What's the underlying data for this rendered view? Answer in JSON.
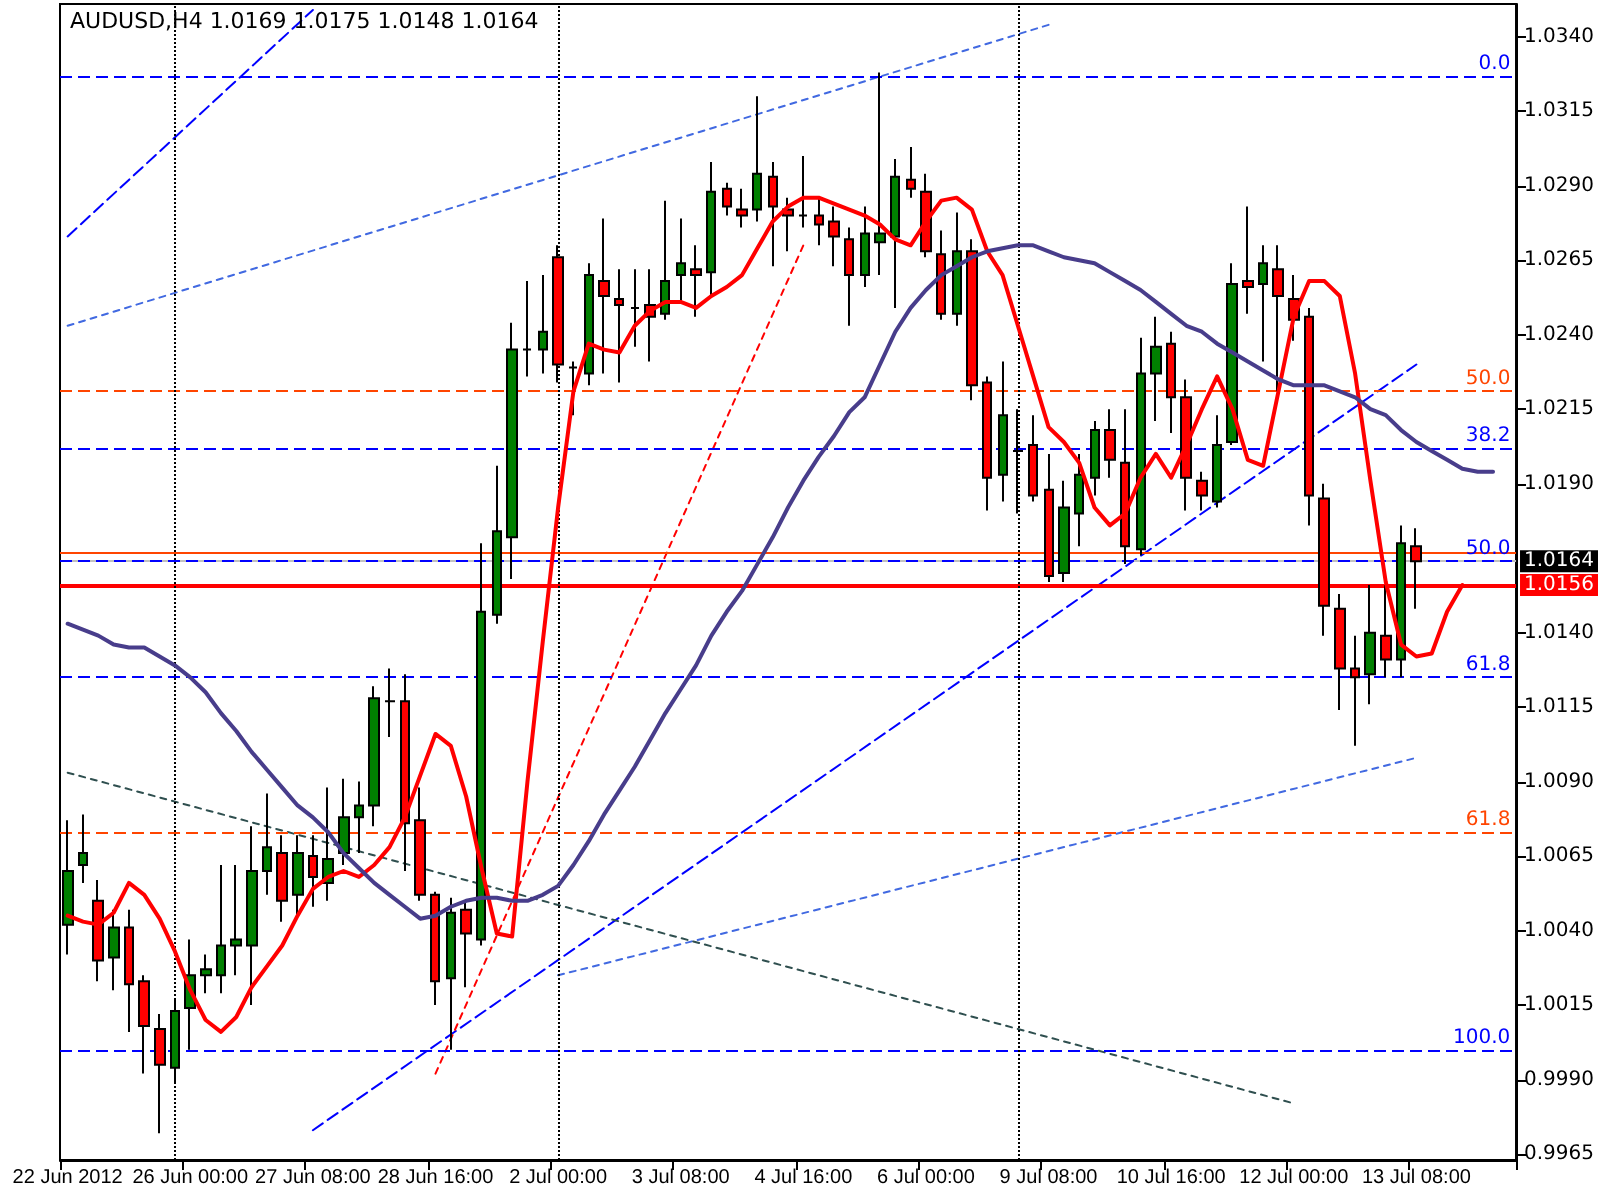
{
  "chart_data": {
    "type": "candlestick",
    "title": "AUDUSD,H4 1.0169 1.0175 1.0148 1.0164",
    "categories": [
      "22 Jun 2012",
      null,
      null,
      null,
      null,
      null,
      null,
      null,
      "26 Jun 00:00",
      null,
      null,
      null,
      null,
      null,
      null,
      null,
      "27 Jun 08:00",
      null,
      null,
      null,
      null,
      null,
      null,
      null,
      "28 Jun 16:00",
      null,
      null,
      null,
      null,
      null,
      null,
      null,
      "2 Jul 00:00",
      null,
      null,
      null,
      null,
      null,
      null,
      null,
      "3 Jul 08:00",
      null,
      null,
      null,
      null,
      null,
      null,
      null,
      "4 Jul 16:00",
      null,
      null,
      null,
      null,
      null,
      null,
      null,
      "6 Jul 00:00",
      null,
      null,
      null,
      null,
      null,
      null,
      null,
      "9 Jul 08:00",
      null,
      null,
      null,
      null,
      null,
      null,
      null,
      "10 Jul 16:00",
      null,
      null,
      null,
      null,
      null,
      null,
      null,
      "12 Jul 00:00",
      null,
      null,
      null,
      null,
      null,
      null,
      null,
      "13 Jul 08:00",
      null,
      null,
      null,
      null,
      null,
      null
    ],
    "ohlc": [
      [
        1.0042,
        1.0077,
        1.0032,
        1.006
      ],
      [
        1.0062,
        1.0079,
        1.0056,
        1.0066
      ],
      [
        1.005,
        1.0057,
        1.0023,
        1.003
      ],
      [
        1.0031,
        1.0047,
        1.002,
        1.0041
      ],
      [
        1.0041,
        1.0047,
        1.0006,
        1.0022
      ],
      [
        1.0023,
        1.0025,
        0.9992,
        1.0008
      ],
      [
        1.0007,
        1.0012,
        0.9972,
        0.9995
      ],
      [
        0.9994,
        1.0017,
        0.9989,
        1.0013
      ],
      [
        1.0014,
        1.0037,
        1.0,
        1.0025
      ],
      [
        1.0025,
        1.0032,
        1.0019,
        1.0027
      ],
      [
        1.0025,
        1.0062,
        1.0019,
        1.0035
      ],
      [
        1.0035,
        1.0062,
        1.0025,
        1.0037
      ],
      [
        1.0035,
        1.0075,
        1.0015,
        1.006
      ],
      [
        1.006,
        1.0086,
        1.0052,
        1.0068
      ],
      [
        1.0066,
        1.0072,
        1.0043,
        1.005
      ],
      [
        1.0052,
        1.0072,
        1.0044,
        1.0066
      ],
      [
        1.0065,
        1.0072,
        1.0048,
        1.0058
      ],
      [
        1.0056,
        1.0088,
        1.005,
        1.0064
      ],
      [
        1.0066,
        1.0091,
        1.0062,
        1.0078
      ],
      [
        1.0078,
        1.009,
        1.0066,
        1.0082
      ],
      [
        1.0082,
        1.0122,
        1.0075,
        1.0118
      ],
      [
        1.0117,
        1.0128,
        1.0105,
        1.0117
      ],
      [
        1.0117,
        1.0126,
        1.006,
        1.0076
      ],
      [
        1.0077,
        1.0088,
        1.005,
        1.0052
      ],
      [
        1.0052,
        1.0053,
        1.0015,
        1.0023
      ],
      [
        1.0024,
        1.0051,
        1.0,
        1.0046
      ],
      [
        1.0047,
        1.005,
        1.0021,
        1.0039
      ],
      [
        1.0037,
        1.017,
        1.0035,
        1.0147
      ],
      [
        1.0146,
        1.0196,
        1.0143,
        1.0174
      ],
      [
        1.0172,
        1.0244,
        1.0158,
        1.0235
      ],
      [
        1.0235,
        1.0258,
        1.0226,
        1.0235
      ],
      [
        1.0235,
        1.026,
        1.0227,
        1.0241
      ],
      [
        1.0266,
        1.027,
        1.0224,
        1.023
      ],
      [
        1.0229,
        1.0231,
        1.0213,
        1.0229
      ],
      [
        1.0227,
        1.0264,
        1.0223,
        1.026
      ],
      [
        1.0258,
        1.0279,
        1.0227,
        1.0253
      ],
      [
        1.0252,
        1.0262,
        1.0224,
        1.025
      ],
      [
        1.0249,
        1.0262,
        1.0236,
        1.0249
      ],
      [
        1.025,
        1.0262,
        1.0231,
        1.0246
      ],
      [
        1.0247,
        1.0285,
        1.0245,
        1.0258
      ],
      [
        1.026,
        1.0279,
        1.0251,
        1.0264
      ],
      [
        1.0262,
        1.027,
        1.0246,
        1.026
      ],
      [
        1.0261,
        1.0298,
        1.0253,
        1.0288
      ],
      [
        1.0289,
        1.0291,
        1.028,
        1.0283
      ],
      [
        1.0282,
        1.0289,
        1.0276,
        1.028
      ],
      [
        1.0282,
        1.032,
        1.0278,
        1.0294
      ],
      [
        1.0293,
        1.0298,
        1.0263,
        1.0283
      ],
      [
        1.0282,
        1.0286,
        1.0268,
        1.028
      ],
      [
        1.028,
        1.03,
        1.0276,
        1.028
      ],
      [
        1.028,
        1.0286,
        1.027,
        1.0277
      ],
      [
        1.0278,
        1.0283,
        1.0263,
        1.0273
      ],
      [
        1.0272,
        1.0276,
        1.0243,
        1.026
      ],
      [
        1.026,
        1.0283,
        1.0256,
        1.0274
      ],
      [
        1.0271,
        1.0328,
        1.026,
        1.0274
      ],
      [
        1.0273,
        1.0299,
        1.0249,
        1.0293
      ],
      [
        1.0292,
        1.0303,
        1.0286,
        1.0289
      ],
      [
        1.0288,
        1.0294,
        1.0266,
        1.0268
      ],
      [
        1.0267,
        1.0275,
        1.0245,
        1.0247
      ],
      [
        1.0247,
        1.0281,
        1.0243,
        1.0268
      ],
      [
        1.0268,
        1.0272,
        1.0218,
        1.0223
      ],
      [
        1.0224,
        1.0226,
        1.0181,
        1.0192
      ],
      [
        1.0193,
        1.0231,
        1.0184,
        1.0213
      ],
      [
        1.0201,
        1.0215,
        1.018,
        1.0201
      ],
      [
        1.0203,
        1.0213,
        1.0184,
        1.0186
      ],
      [
        1.0188,
        1.02,
        1.0157,
        1.0159
      ],
      [
        1.016,
        1.0191,
        1.0157,
        1.0182
      ],
      [
        1.018,
        1.02,
        1.0169,
        1.0193
      ],
      [
        1.0192,
        1.0211,
        1.0186,
        1.0208
      ],
      [
        1.0208,
        1.0215,
        1.0192,
        1.0198
      ],
      [
        1.0197,
        1.0215,
        1.0163,
        1.0169
      ],
      [
        1.0168,
        1.0239,
        1.0166,
        1.0227
      ],
      [
        1.0227,
        1.0246,
        1.0211,
        1.0236
      ],
      [
        1.0237,
        1.0241,
        1.0207,
        1.0219
      ],
      [
        1.0219,
        1.0225,
        1.0181,
        1.0192
      ],
      [
        1.0191,
        1.0194,
        1.0181,
        1.0186
      ],
      [
        1.0184,
        1.0213,
        1.0182,
        1.0203
      ],
      [
        1.0204,
        1.0264,
        1.0203,
        1.0257
      ],
      [
        1.0258,
        1.0283,
        1.0247,
        1.0256
      ],
      [
        1.0257,
        1.027,
        1.0231,
        1.0264
      ],
      [
        1.0262,
        1.027,
        1.0221,
        1.0253
      ],
      [
        1.0252,
        1.026,
        1.0238,
        1.0245
      ],
      [
        1.0246,
        1.0249,
        1.0176,
        1.0186
      ],
      [
        1.0185,
        1.019,
        1.0139,
        1.0149
      ],
      [
        1.0148,
        1.0153,
        1.0114,
        1.0128
      ],
      [
        1.0128,
        1.0139,
        1.0102,
        1.0125
      ],
      [
        1.0126,
        1.0156,
        1.0116,
        1.014
      ],
      [
        1.0139,
        1.0156,
        1.0125,
        1.0131
      ],
      [
        1.0131,
        1.0176,
        1.0125,
        1.017
      ],
      [
        1.0169,
        1.0175,
        1.0148,
        1.0164
      ],
      null,
      null,
      null,
      null,
      null,
      null
    ],
    "colors": [
      "#008000",
      "#008000",
      "#ff0000",
      "#008000",
      "#ff0000",
      "#ff0000",
      "#ff0000",
      "#008000",
      "#008000",
      "#008000",
      "#008000",
      "#008000",
      "#008000",
      "#008000",
      "#ff0000",
      "#008000",
      "#ff0000",
      "#008000",
      "#008000",
      "#008000",
      "#008000",
      "#000000",
      "#ff0000",
      "#ff0000",
      "#ff0000",
      "#008000",
      "#ff0000",
      "#008000",
      "#008000",
      "#008000",
      "#000000",
      "#008000",
      "#ff0000",
      "#000000",
      "#008000",
      "#ff0000",
      "#ff0000",
      "#000000",
      "#ff0000",
      "#008000",
      "#008000",
      "#ff0000",
      "#008000",
      "#ff0000",
      "#ff0000",
      "#008000",
      "#ff0000",
      "#ff0000",
      "#000000",
      "#ff0000",
      "#ff0000",
      "#ff0000",
      "#008000",
      "#008000",
      "#008000",
      "#ff0000",
      "#ff0000",
      "#ff0000",
      "#008000",
      "#ff0000",
      "#ff0000",
      "#008000",
      "#000000",
      "#ff0000",
      "#ff0000",
      "#008000",
      "#008000",
      "#008000",
      "#ff0000",
      "#ff0000",
      "#008000",
      "#008000",
      "#ff0000",
      "#ff0000",
      "#ff0000",
      "#008000",
      "#008000",
      "#ff0000",
      "#008000",
      "#ff0000",
      "#ff0000",
      "#ff0000",
      "#ff0000",
      "#ff0000",
      "#ff0000",
      "#008000",
      "#ff0000",
      "#008000",
      "#ff0000",
      null,
      null,
      null,
      null,
      null,
      null
    ],
    "series": [
      {
        "type": "line",
        "color": "#ff0000",
        "values": [
          1.0045,
          1.0043,
          1.0042,
          1.0046,
          1.0056,
          1.0052,
          1.0044,
          1.0033,
          1.002,
          1.001,
          1.0006,
          1.0011,
          1.0021,
          1.0028,
          1.0035,
          1.0045,
          1.0054,
          1.0058,
          1.006,
          1.0058,
          1.0062,
          1.0068,
          1.0078,
          1.0092,
          1.0106,
          1.0102,
          1.0085,
          1.0061,
          1.0039,
          1.0038,
          1.009,
          1.0137,
          1.0182,
          1.0221,
          1.0237,
          1.0235,
          1.0234,
          1.0243,
          1.0248,
          1.0251,
          1.0251,
          1.0249,
          1.0253,
          1.0256,
          1.026,
          1.0269,
          1.0278,
          1.0283,
          1.0286,
          1.0286,
          1.0284,
          1.0282,
          1.028,
          1.0277,
          1.0272,
          1.027,
          1.0278,
          1.0285,
          1.0286,
          1.0282,
          1.0268,
          1.026,
          1.0243,
          1.0226,
          1.0209,
          1.0204,
          1.0197,
          1.0182,
          1.0176,
          1.018,
          1.0192,
          1.02,
          1.0192,
          1.0203,
          1.0215,
          1.0226,
          1.0215,
          1.0198,
          1.0196,
          1.0221,
          1.0246,
          1.0258,
          1.0258,
          1.0253,
          1.0227,
          1.0191,
          1.0157,
          1.0136,
          1.0132,
          1.0133,
          1.0147,
          1.0156,
          null,
          null,
          null
        ]
      },
      {
        "type": "line",
        "color": "#483d8b",
        "values": [
          1.0143,
          1.0141,
          1.0139,
          1.0136,
          1.0135,
          1.0135,
          1.0132,
          1.0129,
          1.0125,
          1.012,
          1.0113,
          1.0107,
          1.01,
          1.0094,
          1.0088,
          1.0082,
          1.0078,
          1.0073,
          1.0066,
          1.0061,
          1.0056,
          1.0052,
          1.0048,
          1.0044,
          1.0045,
          1.0048,
          1.005,
          1.0051,
          1.0051,
          1.005,
          1.005,
          1.0052,
          1.0055,
          1.0062,
          1.007,
          1.0079,
          1.0087,
          1.0095,
          1.0104,
          1.0113,
          1.0121,
          1.0129,
          1.0139,
          1.0147,
          1.0154,
          1.0163,
          1.0172,
          1.0182,
          1.0191,
          1.0199,
          1.0206,
          1.0214,
          1.0219,
          1.023,
          1.0241,
          1.0249,
          1.0255,
          1.026,
          1.0263,
          1.0266,
          1.0268,
          1.0269,
          1.027,
          1.027,
          1.0268,
          1.0266,
          1.0265,
          1.0264,
          1.0261,
          1.0258,
          1.0255,
          1.0251,
          1.0247,
          1.0243,
          1.0241,
          1.0237,
          1.0234,
          1.0231,
          1.0228,
          1.0225,
          1.0223,
          1.0223,
          1.0223,
          1.0221,
          1.0219,
          1.0215,
          1.0213,
          1.0208,
          1.0204,
          1.0201,
          1.0198,
          1.0195,
          1.0194,
          1.0194,
          null
        ]
      },
      {
        "type": "line",
        "color": "#0000ff",
        "line_style": "dashed",
        "x": [
          "22 Jun 2012",
          "27 Jun 08:00"
        ],
        "values": [
          1.0273,
          1.0349
        ]
      },
      {
        "type": "line",
        "color": "#4169e1",
        "line_style": "dotted",
        "x": [
          "22 Jun 2012",
          "9 Jul 08:00"
        ],
        "values": [
          1.0243,
          1.0344
        ]
      },
      {
        "type": "line",
        "color": "#0000ff",
        "line_style": "dashed",
        "x": [
          "27 Jun 08:00",
          "13 Jul 08:00"
        ],
        "values": [
          0.9973,
          1.023
        ]
      },
      {
        "type": "line",
        "color": "#4169e1",
        "line_style": "dotted",
        "x": [
          "2 Jul 00:00",
          "13 Jul 08:00"
        ],
        "values": [
          1.0025,
          1.0098
        ]
      },
      {
        "type": "line",
        "color": "#ff0000",
        "line_style": "dotted",
        "x": [
          "28 Jun 16:00",
          "4 Jul 16:00"
        ],
        "values": [
          0.9992,
          1.027
        ]
      },
      {
        "type": "line",
        "color": "#2f4f4f",
        "line_style": "dotted",
        "x": [
          "22 Jun 2012",
          "12 Jul 00:00"
        ],
        "values": [
          1.0093,
          0.9982
        ]
      }
    ],
    "marker": "none",
    "ylim": [
      0.9963,
      1.0351
    ],
    "yticks": [
      0.9965,
      {
        "value": 0.999,
        "label": "0.9990"
      },
      1.0015,
      {
        "value": 1.004,
        "label": "1.0040"
      },
      1.0065,
      {
        "value": 1.009,
        "label": "1.0090"
      },
      1.0115,
      {
        "value": 1.014,
        "label": "1.0140"
      },
      {
        "value": 1.019,
        "label": "1.0190"
      },
      1.0215,
      {
        "value": 1.024,
        "label": "1.0240"
      },
      1.0265,
      {
        "value": 1.029,
        "label": "1.0290"
      },
      1.0315,
      {
        "value": 1.034,
        "label": "1.0340"
      }
    ],
    "ref_lines": [
      {
        "axis": "y",
        "value": 1.0167,
        "label": null,
        "color": "#ff4500",
        "line_style": "solid"
      },
      {
        "axis": "y",
        "value": 1.0164,
        "label": "1.0164",
        "color": "#c0c0c0",
        "line_style": "solid"
      },
      {
        "axis": "y",
        "value": 1.0156,
        "label": "1.0156",
        "color": "#ff0000",
        "line_style": "solid"
      },
      {
        "axis": "y",
        "value": 1.0327,
        "color": "#0000ff",
        "line_style": "dashed"
      },
      {
        "axis": "y",
        "value": 1.0202,
        "color": "#0000ff",
        "line_style": "dashed"
      },
      {
        "axis": "y",
        "value": 1.0164,
        "color": "#0000ff",
        "line_style": "dashed"
      },
      {
        "axis": "y",
        "value": 1.0125,
        "color": "#0000ff",
        "line_style": "dashed"
      },
      {
        "axis": "y",
        "value": 1.0,
        "color": "#0000ff",
        "line_style": "dashed"
      },
      {
        "axis": "y",
        "value": 1.0221,
        "color": "#ff4500",
        "line_style": "dashed"
      },
      {
        "axis": "y",
        "value": 1.0073,
        "color": "#ff4500",
        "line_style": "dashed"
      }
    ],
    "annotations": [
      {
        "text": "0.0",
        "y": 1.0327
      },
      {
        "text": "38.2",
        "y": 1.0202
      },
      {
        "text": "50.0",
        "y": 1.0164
      },
      {
        "text": "61.8",
        "y": 1.0125
      },
      {
        "text": "100.0",
        "y": 1.0
      },
      {
        "text": "50.0",
        "y": 1.0221
      },
      {
        "text": "61.8",
        "y": 1.0073
      }
    ]
  }
}
